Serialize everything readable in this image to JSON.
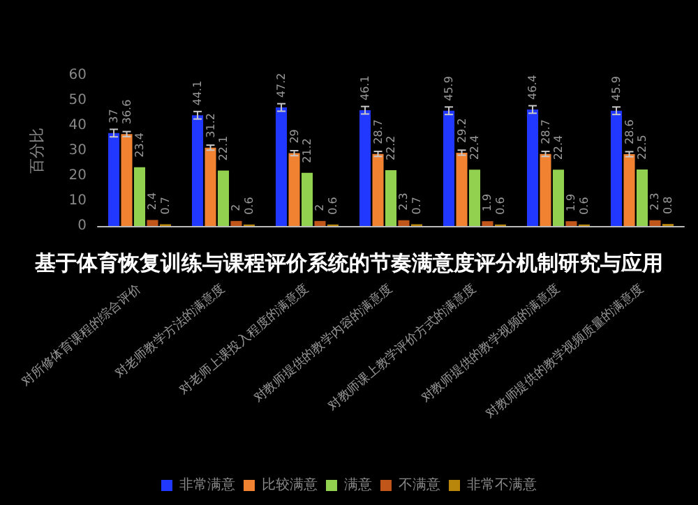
{
  "chart_data": {
    "type": "bar",
    "title": "基于体育恢复训练与课程评价系统的节奏满意度评分机制研究与应用",
    "ylabel": "百分比",
    "categories": [
      "对所修体育课程的综合评价",
      "对老师教学方法的满意度",
      "对老师上课投入程度的满意度",
      "对教师提供的教学内容的满意度",
      "对教师课上教学评价方式的满意度",
      "对教师提供的教学视频的满意度",
      "对教师提供的教学视频质量的满意度"
    ],
    "series": [
      {
        "name": "非常满意",
        "color": "#2038ff",
        "values": [
          37,
          44.1,
          47.2,
          46.1,
          45.9,
          46.4,
          45.9
        ],
        "errors": [
          1.5,
          1.5,
          1.5,
          1.5,
          1.5,
          1.5,
          1.5
        ]
      },
      {
        "name": "比较满意",
        "color": "#f08232",
        "values": [
          36.6,
          31.2,
          29,
          28.7,
          29.2,
          28.7,
          28.6
        ],
        "errors": [
          1,
          1,
          1,
          1,
          1,
          1,
          1
        ]
      },
      {
        "name": "满意",
        "color": "#92d050",
        "values": [
          23.4,
          22.1,
          21.2,
          22.2,
          22.4,
          22.4,
          22.5
        ]
      },
      {
        "name": "不满意",
        "color": "#c0561a",
        "values": [
          2.4,
          2,
          2,
          2.3,
          1.9,
          1.9,
          2.3
        ]
      },
      {
        "name": "非常不满意",
        "color": "#b8860b",
        "values": [
          0.7,
          0.6,
          0.6,
          0.7,
          0.6,
          0.6,
          0.8
        ]
      }
    ],
    "ylim": [
      0,
      60
    ],
    "yticks": [
      0,
      10,
      20,
      30,
      40,
      50,
      60
    ],
    "grid": false,
    "legend": "bottom",
    "data_labels": true
  }
}
